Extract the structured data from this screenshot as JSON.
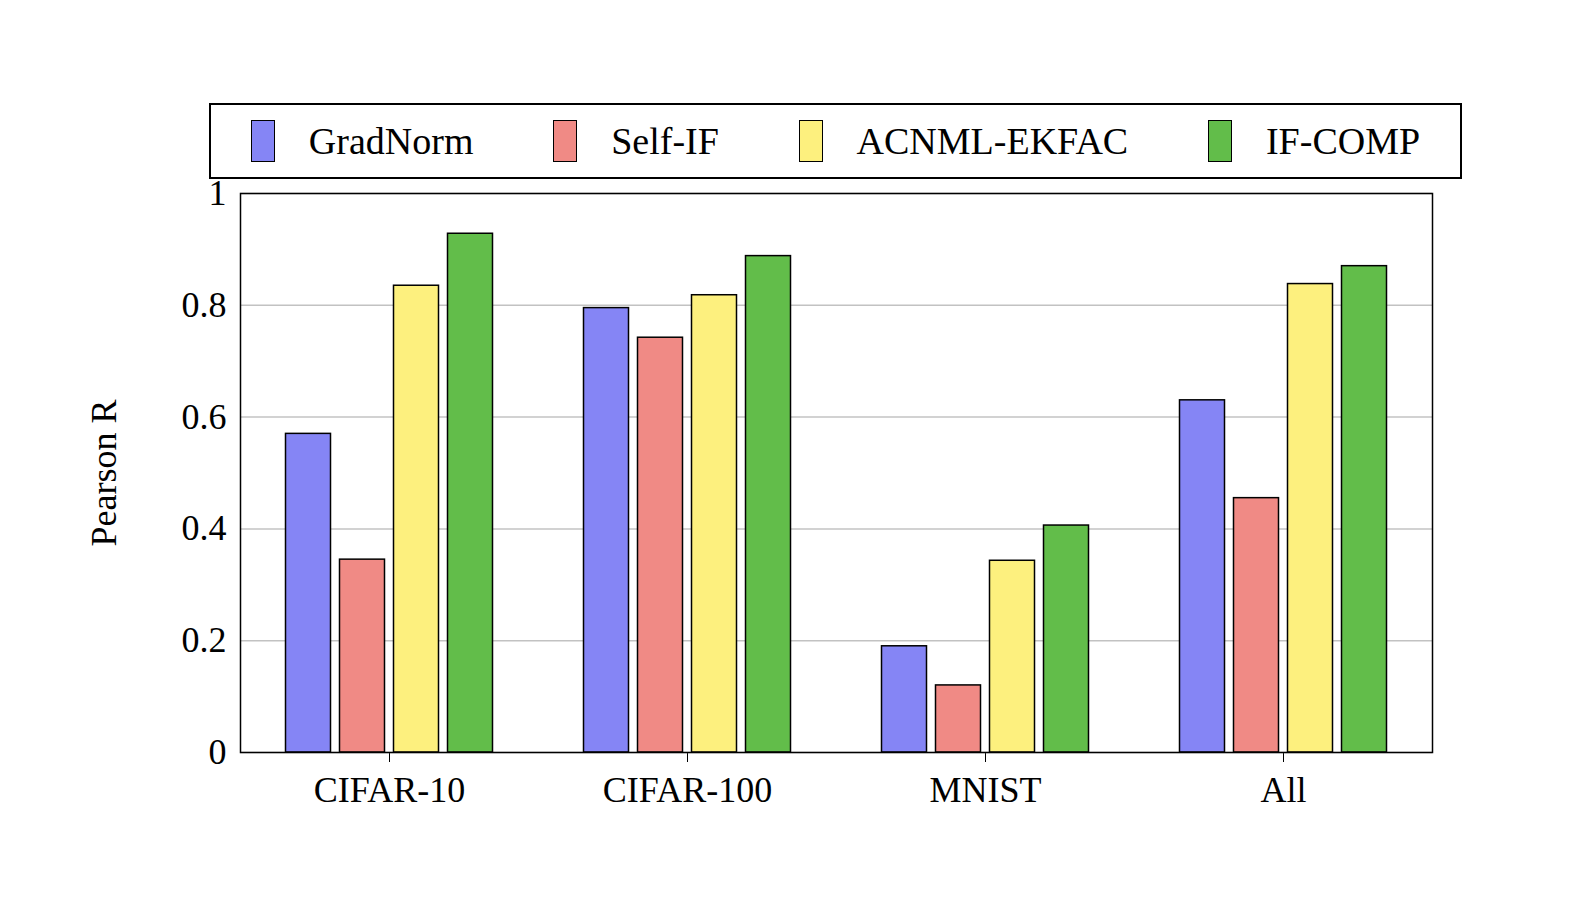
{
  "chart_data": {
    "type": "bar",
    "categories": [
      "CIFAR-10",
      "CIFAR-100",
      "MNIST",
      "All"
    ],
    "series": [
      {
        "name": "GradNorm",
        "color": "#8585f5",
        "values": [
          0.57,
          0.795,
          0.19,
          0.63
        ]
      },
      {
        "name": "Self-IF",
        "color": "#f08a85",
        "values": [
          0.345,
          0.742,
          0.12,
          0.455
        ]
      },
      {
        "name": "ACNML-EKFAC",
        "color": "#fdf07e",
        "values": [
          0.835,
          0.818,
          0.343,
          0.838
        ]
      },
      {
        "name": "IF-COMP",
        "color": "#62bd4a",
        "values": [
          0.928,
          0.888,
          0.406,
          0.87
        ]
      }
    ],
    "y_label": "Pearson R",
    "ylim": [
      0,
      1
    ],
    "yticks": [
      0,
      0.2,
      0.4,
      0.6,
      0.8,
      1
    ],
    "grid": true,
    "legend": "top"
  }
}
